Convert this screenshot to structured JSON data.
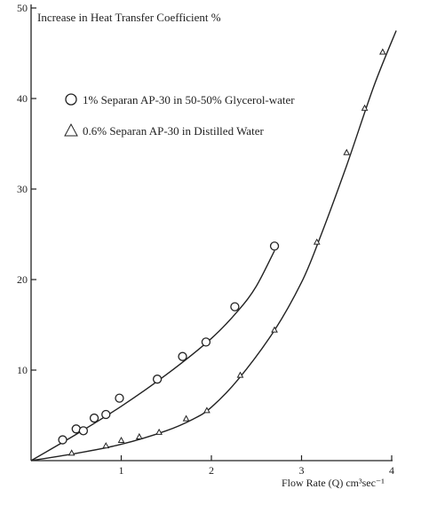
{
  "chart_data": {
    "type": "scatter",
    "title": "Increase in Heat Transfer Coefficient %",
    "xlabel": "Flow Rate (Q) cm³sec⁻¹",
    "ylabel": "",
    "xlim": [
      0,
      4.1
    ],
    "ylim": [
      0,
      50
    ],
    "x_ticks": [
      "1",
      "2",
      "3",
      "4"
    ],
    "y_ticks": [
      "10",
      "20",
      "30",
      "40",
      "50"
    ],
    "grid": false,
    "legend_position": "top-left",
    "series": [
      {
        "name": "1% Separan AP-30 in 50-50% Glycerol-water",
        "marker": "circle",
        "points": [
          {
            "x": 0.35,
            "y": 2.3
          },
          {
            "x": 0.5,
            "y": 3.5
          },
          {
            "x": 0.58,
            "y": 3.3
          },
          {
            "x": 0.7,
            "y": 4.7
          },
          {
            "x": 0.83,
            "y": 5.1
          },
          {
            "x": 0.98,
            "y": 6.9
          },
          {
            "x": 1.4,
            "y": 9.0
          },
          {
            "x": 1.68,
            "y": 11.5
          },
          {
            "x": 1.94,
            "y": 13.1
          },
          {
            "x": 2.26,
            "y": 17.0
          },
          {
            "x": 2.7,
            "y": 23.7
          }
        ]
      },
      {
        "name": "0.6% Separan AP-30 in Distilled Water",
        "marker": "triangle",
        "points": [
          {
            "x": 0.45,
            "y": 0.8
          },
          {
            "x": 0.83,
            "y": 1.6
          },
          {
            "x": 1.0,
            "y": 2.2
          },
          {
            "x": 1.2,
            "y": 2.6
          },
          {
            "x": 1.42,
            "y": 3.1
          },
          {
            "x": 1.72,
            "y": 4.6
          },
          {
            "x": 1.95,
            "y": 5.5
          },
          {
            "x": 2.32,
            "y": 9.4
          },
          {
            "x": 2.7,
            "y": 14.4
          },
          {
            "x": 3.17,
            "y": 24.1
          },
          {
            "x": 3.5,
            "y": 34.0
          },
          {
            "x": 3.7,
            "y": 38.9
          },
          {
            "x": 3.9,
            "y": 45.1
          }
        ]
      }
    ],
    "fit_curves": [
      {
        "series": "1% Separan AP-30 in 50-50% Glycerol-water",
        "points": [
          [
            0,
            0
          ],
          [
            0.5,
            2.9
          ],
          [
            1.0,
            6.0
          ],
          [
            1.5,
            9.5
          ],
          [
            2.0,
            13.5
          ],
          [
            2.3,
            16.6
          ],
          [
            2.5,
            19.3
          ],
          [
            2.7,
            23.2
          ]
        ]
      },
      {
        "series": "0.6% Separan AP-30 in Distilled Water",
        "points": [
          [
            0,
            0
          ],
          [
            0.5,
            0.8
          ],
          [
            1.0,
            1.8
          ],
          [
            1.5,
            3.3
          ],
          [
            1.8,
            4.6
          ],
          [
            2.0,
            5.9
          ],
          [
            2.3,
            9.0
          ],
          [
            2.7,
            14.4
          ],
          [
            3.0,
            19.7
          ],
          [
            3.2,
            24.5
          ],
          [
            3.5,
            32.6
          ],
          [
            3.8,
            41.3
          ],
          [
            4.05,
            47.5
          ]
        ]
      }
    ]
  }
}
